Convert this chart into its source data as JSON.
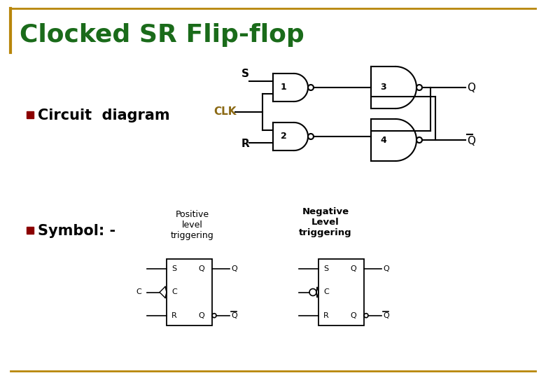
{
  "title": "Clocked SR Flip-flop",
  "title_color": "#1a6b1a",
  "title_fontsize": 26,
  "bg_color": "#ffffff",
  "border_color": "#b8860b",
  "bullet_color": "#8b0000",
  "text_color": "#000000",
  "circuit_diagram_label": "Circuit  diagram",
  "symbol_label": "Symbol: -",
  "pos_trigger_label": "Positive\nlevel\ntriggering",
  "neg_trigger_label": "Negative\nLevel\ntriggering",
  "clk_color": "#8B6914"
}
